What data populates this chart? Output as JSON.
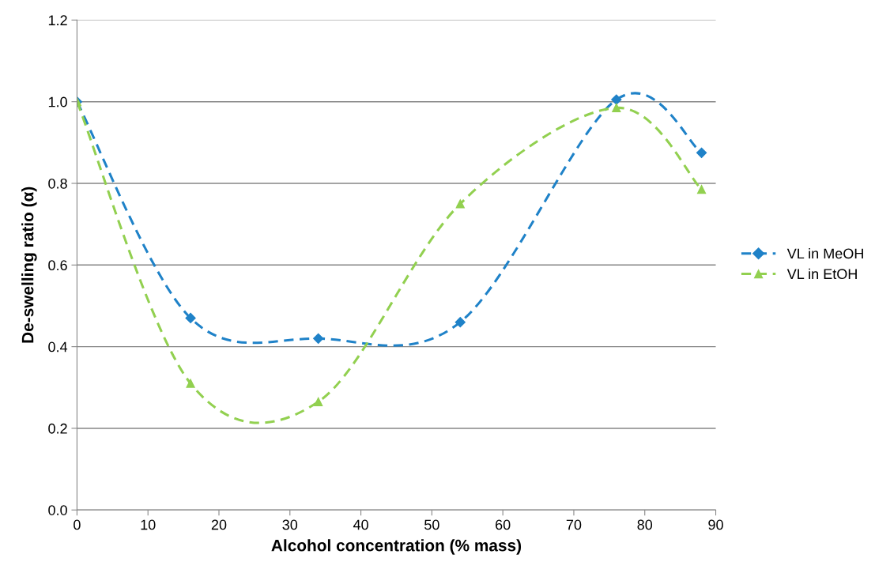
{
  "chart_data": {
    "type": "line",
    "xlabel": "Alcohol concentration (% mass)",
    "ylabel": "De-swelling ratio (α)",
    "x": [
      0,
      16,
      34,
      54,
      76,
      88
    ],
    "series": [
      {
        "name": "VL in MeOH",
        "color": "#1f82c8",
        "marker": "diamond",
        "values": [
          1.0,
          0.47,
          0.42,
          0.46,
          1.005,
          0.875
        ]
      },
      {
        "name": "VL in EtOH",
        "color": "#92d050",
        "marker": "triangle",
        "values": [
          1.0,
          0.31,
          0.265,
          0.75,
          0.985,
          0.785
        ]
      }
    ],
    "line_style": "dashed",
    "xlim": [
      0,
      90
    ],
    "xticks": [
      0,
      10,
      20,
      30,
      40,
      50,
      60,
      70,
      80,
      90
    ],
    "ylim": [
      0,
      1.2
    ],
    "yticks": [
      {
        "value": 0,
        "label": "0.0"
      },
      0.2,
      0.4,
      0.6,
      0.8,
      {
        "value": 1.0,
        "label": "1.0"
      },
      1.2
    ],
    "grid": "y",
    "legend": "right"
  }
}
